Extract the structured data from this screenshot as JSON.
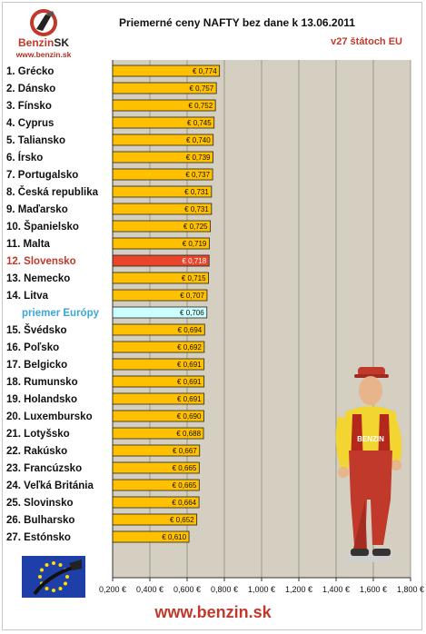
{
  "logo": {
    "brand": "Benzin",
    "tld": "SK",
    "url": "www.benzin.sk"
  },
  "header": {
    "title": "Priemerné ceny NAFTY bez dane k 13.06.2011",
    "subtitle": "v27 štátoch EU"
  },
  "footer": {
    "url": "www.benzin.sk"
  },
  "colors": {
    "bar": "#ffc000",
    "highlight": "#e8452a",
    "average": "#ccffff",
    "plot_bg": "#d4cfc0",
    "brand": "#c0392b"
  },
  "chart_data": {
    "type": "bar",
    "orientation": "horizontal",
    "xlim": [
      0.2,
      1.8
    ],
    "x_ticks": [
      "0,200 €",
      "0,400 €",
      "0,600 €",
      "0,800 €",
      "1,000 €",
      "1,200 €",
      "1,400 €",
      "1,600 €",
      "1,800 €"
    ],
    "categories": [
      "1. Grécko",
      "2. Dánsko",
      "3. Fínsko",
      "4. Cyprus",
      "5. Taliansko",
      "6. Írsko",
      "7. Portugalsko",
      "8. Česká republika",
      "9. Maďarsko",
      "10. Španielsko",
      "11. Malta",
      "12. Slovensko",
      "13. Nemecko",
      "14. Litva",
      "priemer Európy",
      "15. Švédsko",
      "16. Poľsko",
      "17. Belgicko",
      "18. Rumunsko",
      "19. Holandsko",
      "20. Luxembursko",
      "21. Lotyšsko",
      "22. Rakúsko",
      "23. Francúzsko",
      "24. Veľká Británia",
      "25. Slovinsko",
      "26. Bulharsko",
      "27. Estónsko"
    ],
    "values": [
      0.774,
      0.757,
      0.752,
      0.745,
      0.74,
      0.739,
      0.737,
      0.731,
      0.731,
      0.725,
      0.719,
      0.718,
      0.715,
      0.707,
      0.706,
      0.694,
      0.692,
      0.691,
      0.691,
      0.691,
      0.69,
      0.688,
      0.667,
      0.665,
      0.665,
      0.664,
      0.652,
      0.61
    ],
    "value_labels": [
      "€ 0,774",
      "€ 0,757",
      "€ 0,752",
      "€ 0,745",
      "€ 0,740",
      "€ 0,739",
      "€ 0,737",
      "€ 0,731",
      "€ 0,731",
      "€ 0,725",
      "€ 0,719",
      "€ 0,718",
      "€ 0,715",
      "€ 0,707",
      "€ 0,706",
      "€ 0,694",
      "€ 0,692",
      "€ 0,691",
      "€ 0,691",
      "€ 0,691",
      "€ 0,690",
      "€ 0,688",
      "€ 0,667",
      "€ 0,665",
      "€ 0,665",
      "€ 0,664",
      "€ 0,652",
      "€ 0,610"
    ],
    "highlight_index": 11,
    "average_index": 14,
    "grid": true
  }
}
